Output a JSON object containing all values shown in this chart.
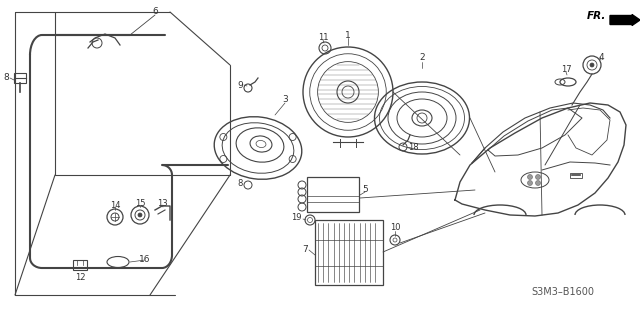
{
  "bg_color": "#ffffff",
  "lc": "#444444",
  "tc": "#333333",
  "ref_code": "S3M3–B1600",
  "fig_width": 6.4,
  "fig_height": 3.18
}
